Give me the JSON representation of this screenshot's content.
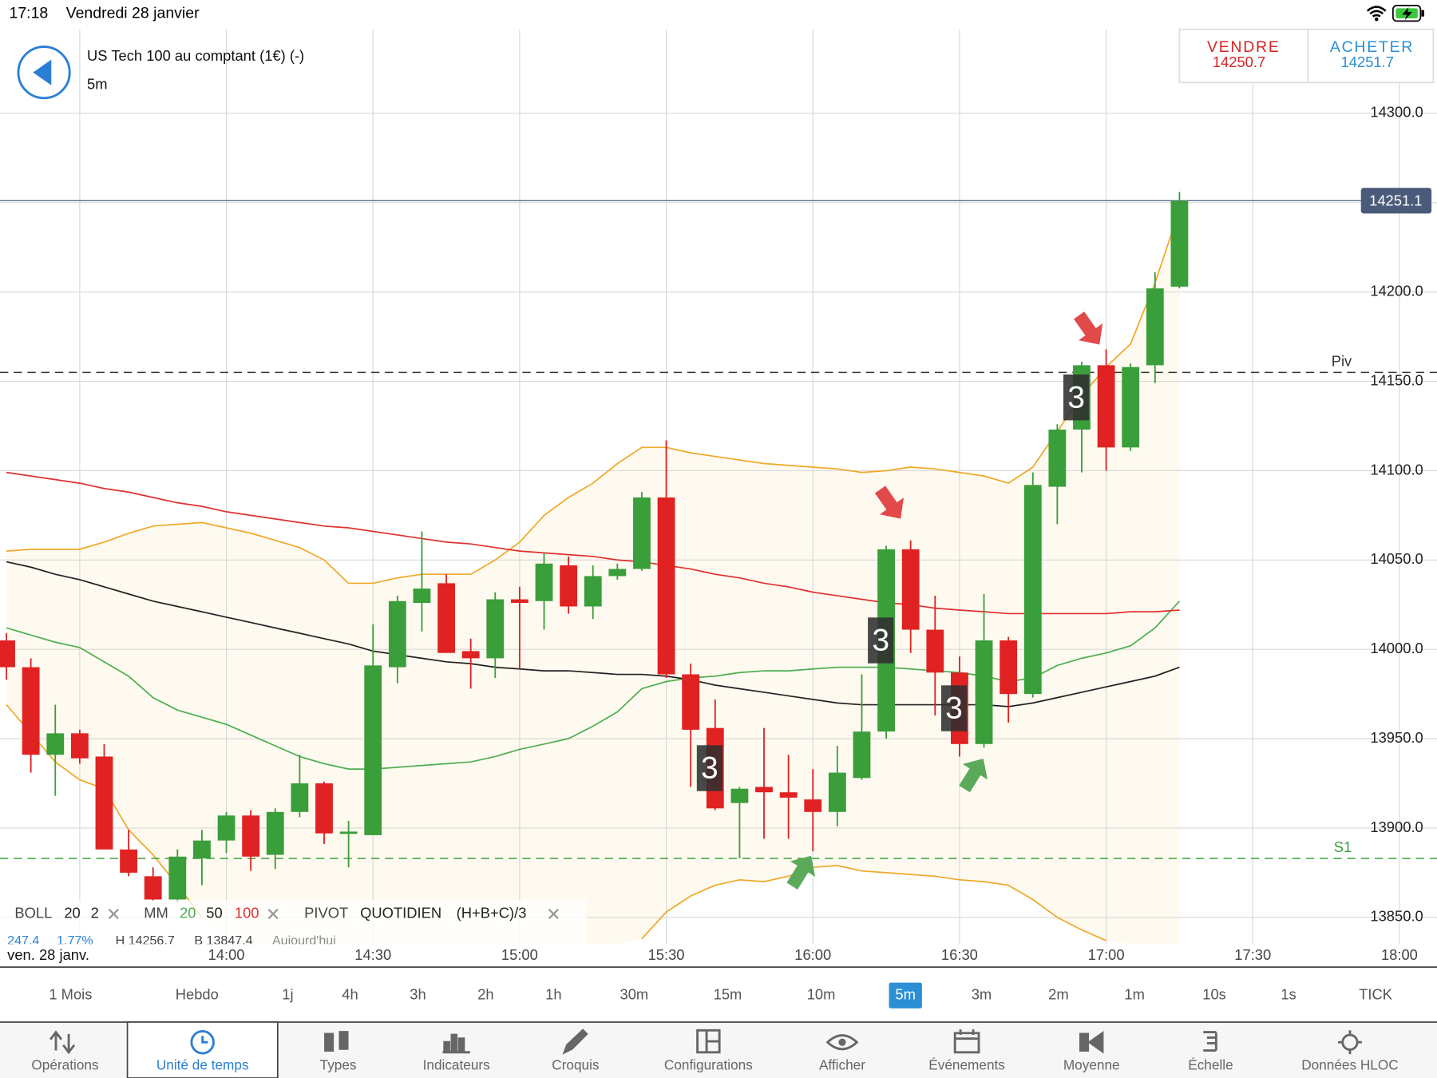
{
  "status_bar": {
    "time": "17:18",
    "date": "Vendredi 28 janvier"
  },
  "header": {
    "instrument": "US Tech 100 au comptant (1€) (-)",
    "timeframe": "5m"
  },
  "quote": {
    "sell_label": "VENDRE",
    "sell": 14250.7,
    "buy_label": "ACHETER",
    "buy": 14251.7
  },
  "chart_data": {
    "type": "candlestick",
    "open": [
      14005,
      13990,
      13941,
      13953,
      13940,
      13888,
      13873,
      13860,
      13883,
      13893,
      13907,
      13885,
      13909,
      13925,
      13897,
      13896,
      13990,
      14026,
      14037,
      13999,
      13995,
      14028,
      14027,
      14047,
      14024,
      14041,
      14045,
      14085,
      13986,
      13956,
      13914,
      13923,
      13920,
      13916,
      13909,
      13928,
      13954,
      14056,
      14011,
      13987,
      13947,
      14005,
      13975,
      14091,
      14123,
      14159,
      14113,
      14159,
      14203
    ],
    "high": [
      14009,
      13995,
      13969,
      13955,
      13947,
      13899,
      13878,
      13888,
      13899,
      13909,
      13910,
      13911,
      13941,
      13926,
      13904,
      14014,
      14030,
      14066,
      14042,
      14006,
      14032,
      14035,
      14054,
      14052,
      14047,
      14048,
      14088,
      14117,
      13992,
      13972,
      13923,
      13956,
      13941,
      13933,
      13946,
      13986,
      14058,
      14061,
      14030,
      13996,
      14031,
      14007,
      14099,
      14126,
      14161,
      14168,
      14160,
      14211,
      14256
    ],
    "low": [
      13983,
      13931,
      13918,
      13936,
      13888,
      13873,
      13859,
      13858,
      13868,
      13886,
      13876,
      13877,
      13906,
      13891,
      13878,
      13896,
      13981,
      14010,
      13998,
      13978,
      13984,
      13989,
      14011,
      14020,
      14017,
      14039,
      14044,
      13984,
      13923,
      13910,
      13883,
      13894,
      13894,
      13887,
      13901,
      13927,
      13950,
      13998,
      13963,
      13940,
      13945,
      13959,
      13973,
      14070,
      14099,
      14100,
      14111,
      14149,
      14202
    ],
    "close": [
      13990,
      13941,
      13953,
      13939,
      13888,
      13875,
      13860,
      13884,
      13893,
      13907,
      13884,
      13909,
      13925,
      13897,
      13898,
      13991,
      14027,
      14034,
      13998,
      13995,
      14028,
      14026,
      14048,
      14024,
      14041,
      14045,
      14085,
      13986,
      13955,
      13911,
      13922,
      13920,
      13917,
      13909,
      13931,
      13954,
      14056,
      14011,
      13987,
      13947,
      14005,
      13975,
      14092,
      14123,
      14159,
      14113,
      14158,
      14202,
      14251
    ],
    "signals": [
      null,
      null,
      null,
      null,
      null,
      null,
      null,
      null,
      null,
      null,
      null,
      null,
      null,
      null,
      null,
      null,
      null,
      null,
      null,
      null,
      null,
      null,
      null,
      null,
      null,
      null,
      null,
      null,
      null,
      "3",
      null,
      null,
      null,
      null,
      null,
      null,
      "3",
      null,
      null,
      "3",
      null,
      null,
      null,
      null,
      "3",
      null,
      null,
      null,
      null
    ],
    "up_color": "#3a9e3a",
    "down_color": "#e02222",
    "bollinger": {
      "color": "#f0a828",
      "fill": "#fffaf0",
      "upper": [
        14055,
        14056,
        14056,
        14056,
        14060,
        14065,
        14069,
        14070,
        14071,
        14068,
        14065,
        14061,
        14057,
        14050,
        14037,
        14037,
        14040,
        14042,
        14042,
        14042,
        14050,
        14060,
        14075,
        14085,
        14093,
        14104,
        14113,
        14113,
        14110,
        14108,
        14106,
        14104,
        14103,
        14102,
        14101,
        14099,
        14100,
        14102,
        14101,
        14099,
        14097,
        14093,
        14102,
        14122,
        14142,
        14158,
        14171,
        14205,
        14246
      ],
      "lower": [
        13969,
        13953,
        13937,
        13927,
        13922,
        13899,
        13885,
        13868,
        13850,
        null,
        null,
        null,
        null,
        null,
        null,
        null,
        null,
        null,
        null,
        null,
        null,
        null,
        null,
        null,
        null,
        null,
        13838,
        13853,
        13862,
        13868,
        13871,
        13870,
        13873,
        13878,
        13879,
        13876,
        13875,
        13874,
        13873,
        13871,
        13870,
        13868,
        13860,
        13850,
        13843,
        13837,
        null,
        null,
        null
      ]
    },
    "moving_averages": [
      {
        "name": "20",
        "color": "#4caf50",
        "values": [
          14012,
          14008,
          14004,
          14001,
          13993,
          13985,
          13973,
          13966,
          13962,
          13958,
          13952,
          13946,
          13940,
          13936,
          13933,
          13933,
          13934,
          13935,
          13936,
          13937,
          13940,
          13944,
          13947,
          13950,
          13957,
          13965,
          13978,
          13982,
          13984,
          13985,
          13987,
          13988,
          13988,
          13989,
          13990,
          13990,
          13990,
          13989,
          13988,
          13987,
          13985,
          13982,
          13984,
          13991,
          13995,
          13998,
          14002,
          14012,
          14027
        ]
      },
      {
        "name": "50",
        "color": "#222222",
        "values": [
          14049,
          14046,
          14042,
          14039,
          14035,
          14031,
          14027,
          14024,
          14021,
          14018,
          14015,
          14012,
          14009,
          14006,
          14003,
          13999,
          13997,
          13995,
          13993,
          13992,
          13990,
          13989,
          13988,
          13988,
          13987,
          13986,
          13986,
          13985,
          13983,
          13980,
          13978,
          13976,
          13974,
          13972,
          13970,
          13969,
          13969,
          13969,
          13969,
          13969,
          13969,
          13968,
          13970,
          13973,
          13976,
          13979,
          13982,
          13985,
          13990
        ]
      },
      {
        "name": "100",
        "color": "#e03030",
        "values": [
          14099,
          14097,
          14095,
          14093,
          14090,
          14088,
          14085,
          14082,
          14080,
          14077,
          14075,
          14073,
          14071,
          14069,
          14068,
          14066,
          14064,
          14062,
          14060,
          14059,
          14057,
          14055,
          14054,
          14053,
          14052,
          14050,
          14049,
          14047,
          14045,
          14042,
          14040,
          14037,
          14035,
          14032,
          14030,
          14028,
          14026,
          14025,
          14023,
          14022,
          14021,
          14020,
          14020,
          14020,
          14020,
          14020,
          14021,
          14021,
          14022
        ]
      }
    ],
    "ylim": [
      13835,
      14347
    ],
    "yticks": [
      {
        "value": 13850,
        "label": "13850.0"
      },
      {
        "value": 13900,
        "label": "13900.0"
      },
      {
        "value": 13950,
        "label": "13950.0"
      },
      {
        "value": 14000,
        "label": "14000.0"
      },
      {
        "value": 14050,
        "label": "14050.0"
      },
      {
        "value": 14100,
        "label": "14100.0"
      },
      {
        "value": 14150,
        "label": "14150.0"
      },
      {
        "value": 14200,
        "label": "14200.0"
      },
      {
        "value": 14250,
        "label": "14250.0"
      },
      {
        "value": 14300,
        "label": "14300.0"
      }
    ],
    "xticks": [
      null,
      "14:00",
      "14:30",
      "15:00",
      "15:30",
      "16:00",
      "16:30",
      "17:00",
      "17:30",
      "18:00"
    ],
    "date_label": "ven. 28 janv.",
    "last_price": 14251.1,
    "pivots": [
      {
        "label": "Piv",
        "value": 14155,
        "color": "#333333"
      },
      {
        "label": "S1",
        "value": 13883,
        "color": "#3aa03a"
      }
    ],
    "grid": true
  },
  "legend": {
    "boll": "BOLL",
    "boll_period": "20",
    "boll_dev": "2",
    "mm": "MM",
    "pivot": "PIVOT",
    "pivot_period": "QUOTIDIEN",
    "pivot_formula": "(H+B+C)/3"
  },
  "stats": [
    "247.4",
    "1.77%",
    "H 14256.7",
    "B 13847.4",
    "Aujourd'hui"
  ],
  "timeframes": {
    "items": [
      "1 Mois",
      "Hebdo",
      "1j",
      "4h",
      "3h",
      "2h",
      "1h",
      "30m",
      "15m",
      "10m",
      "5m",
      "3m",
      "2m",
      "1m",
      "10s",
      "1s",
      "TICK"
    ],
    "selected": 10
  },
  "tabs": {
    "items": [
      "Opérations",
      "Unité de temps",
      "Types",
      "Indicateurs",
      "Croquis",
      "Configurations",
      "Afficher",
      "Événements",
      "Moyenne",
      "Échelle",
      "Données HLOC"
    ],
    "selected": 1
  }
}
